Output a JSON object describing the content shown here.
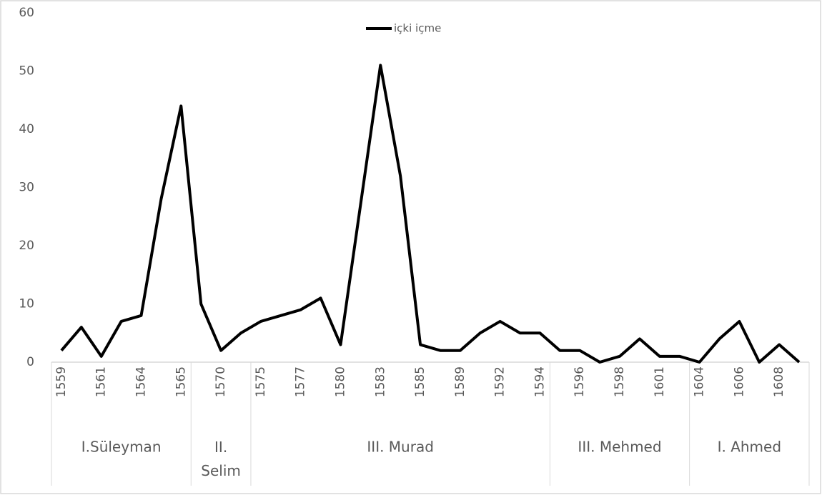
{
  "chart_data": {
    "type": "line",
    "categories": [
      "1559",
      null,
      "1561",
      null,
      "1564",
      null,
      "1565",
      null,
      "1570",
      null,
      "1575",
      null,
      "1577",
      null,
      "1580",
      null,
      "1583",
      null,
      "1585",
      null,
      "1589",
      null,
      "1592",
      null,
      "1594",
      null,
      "1596",
      null,
      "1598",
      null,
      "1601",
      null,
      "1604",
      null,
      "1606",
      null,
      "1608",
      null
    ],
    "groups": [
      {
        "label": "I.Süleyman",
        "span": 7
      },
      {
        "label": "II. Selim",
        "span": 3
      },
      {
        "label": "III. Murad",
        "span": 15
      },
      {
        "label": "III. Mehmed",
        "span": 7
      },
      {
        "label": "I. Ahmed",
        "span": 6
      }
    ],
    "series": [
      {
        "name": "içki içme",
        "color": "#000000",
        "values": [
          2,
          6,
          1,
          7,
          8,
          28,
          44,
          10,
          2,
          5,
          7,
          8,
          9,
          11,
          3,
          27,
          51,
          32,
          3,
          2,
          2,
          5,
          7,
          5,
          5,
          2,
          2,
          0,
          1,
          4,
          1,
          1,
          0,
          4,
          7,
          0,
          3,
          0
        ]
      }
    ],
    "ylim": [
      0,
      60
    ],
    "yticks": [
      0,
      10,
      20,
      30,
      40,
      50,
      60
    ],
    "grid": false,
    "legend": "top"
  }
}
